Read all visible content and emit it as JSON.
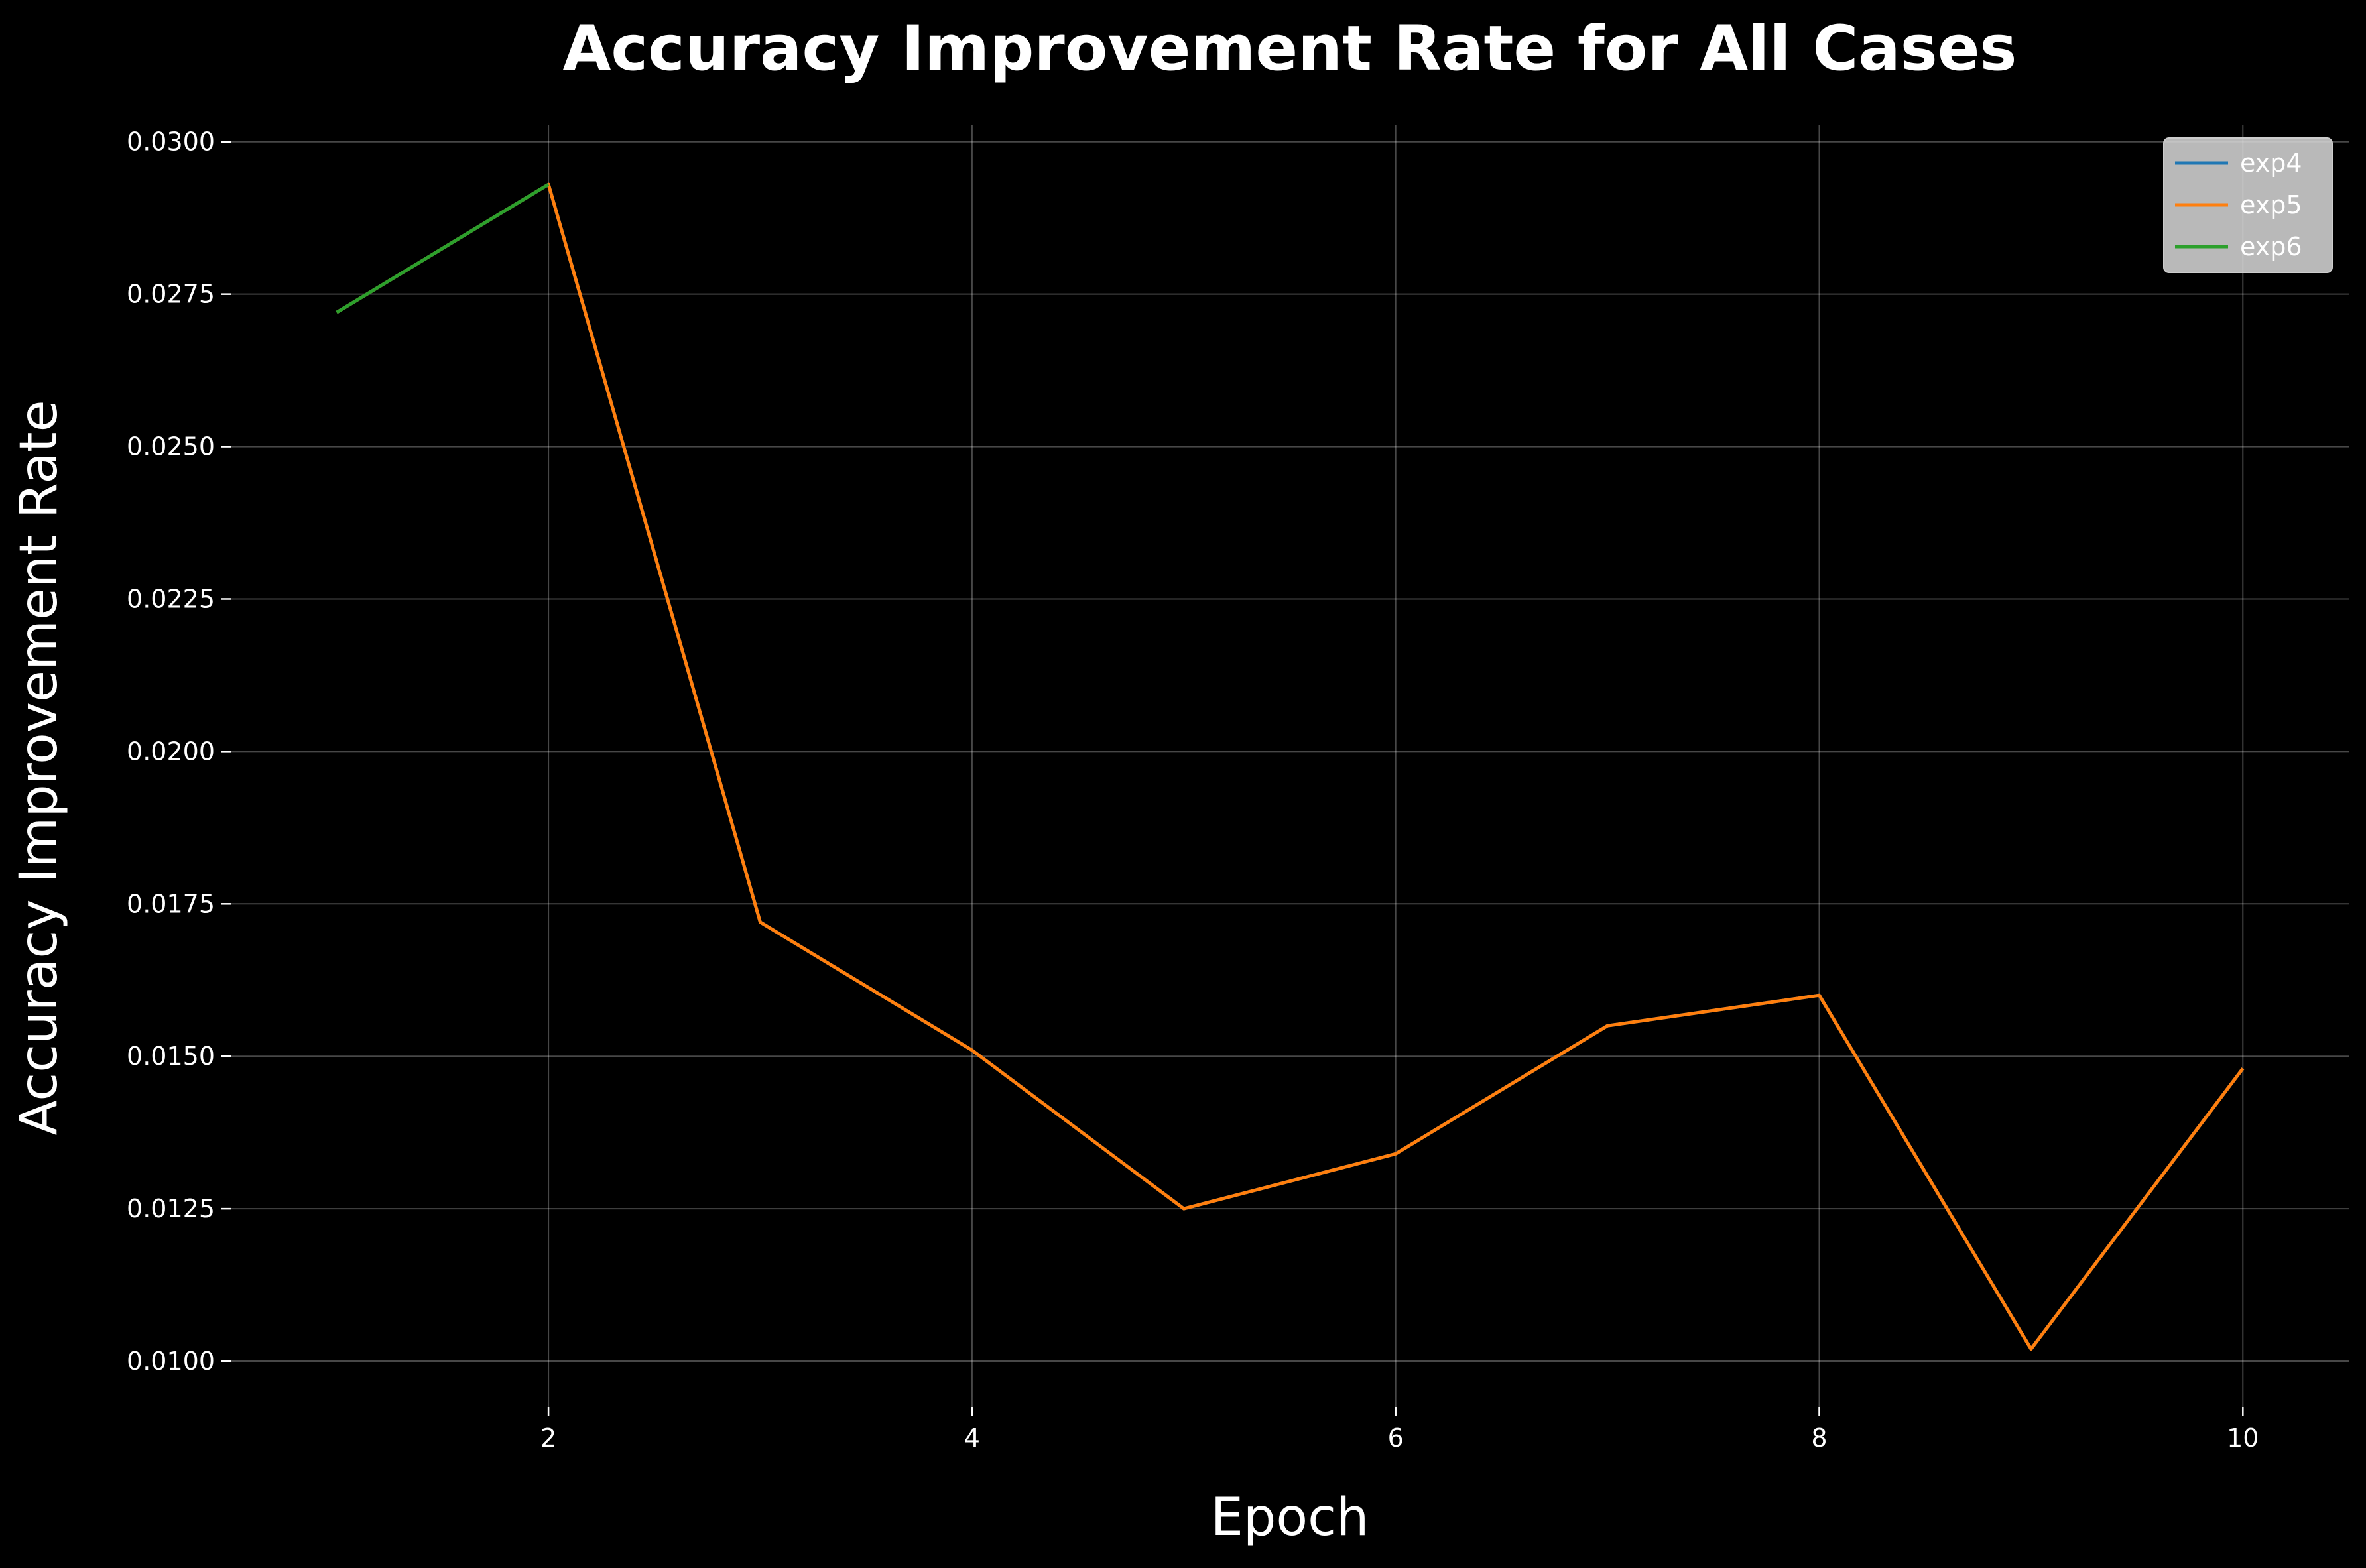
{
  "chart_data": {
    "type": "line",
    "title": "Accuracy Improvement Rate for All Cases",
    "xlabel": "Epoch",
    "ylabel": "Accuracy Improvement Rate",
    "xlim": [
      0.5,
      10.5
    ],
    "ylim": [
      0.00925,
      0.03028
    ],
    "x_ticks": [
      2,
      4,
      6,
      8,
      10
    ],
    "x_tick_labels": [
      "2",
      "4",
      "6",
      "8",
      "10"
    ],
    "y_ticks": [
      0.01,
      0.0125,
      0.015,
      0.0175,
      0.02,
      0.0225,
      0.025,
      0.0275,
      0.03
    ],
    "y_tick_labels": [
      "0.0100",
      "0.0125",
      "0.0150",
      "0.0175",
      "0.0200",
      "0.0225",
      "0.0250",
      "0.0275",
      "0.0300"
    ],
    "grid": true,
    "legend_position": "top-right",
    "background": "#000000",
    "series": [
      {
        "name": "exp4",
        "color": "#1f77b4",
        "x": [
          1,
          2,
          3,
          4,
          5,
          6,
          7,
          8,
          9,
          10
        ],
        "values": [
          0.0272,
          0.0293,
          0.0172,
          0.0151,
          0.0125,
          0.0134,
          0.0155,
          0.016,
          0.0102,
          0.0148
        ]
      },
      {
        "name": "exp5",
        "color": "#ff7f0e",
        "x": [
          1,
          2,
          3,
          4,
          5,
          6,
          7,
          8,
          9,
          10
        ],
        "values": [
          0.0272,
          0.0293,
          0.0172,
          0.0151,
          0.0125,
          0.0134,
          0.0155,
          0.016,
          0.0102,
          0.0148
        ]
      },
      {
        "name": "exp6",
        "color": "#2ca02c",
        "x": [
          1,
          2
        ],
        "values": [
          0.0272,
          0.0293
        ]
      }
    ]
  }
}
